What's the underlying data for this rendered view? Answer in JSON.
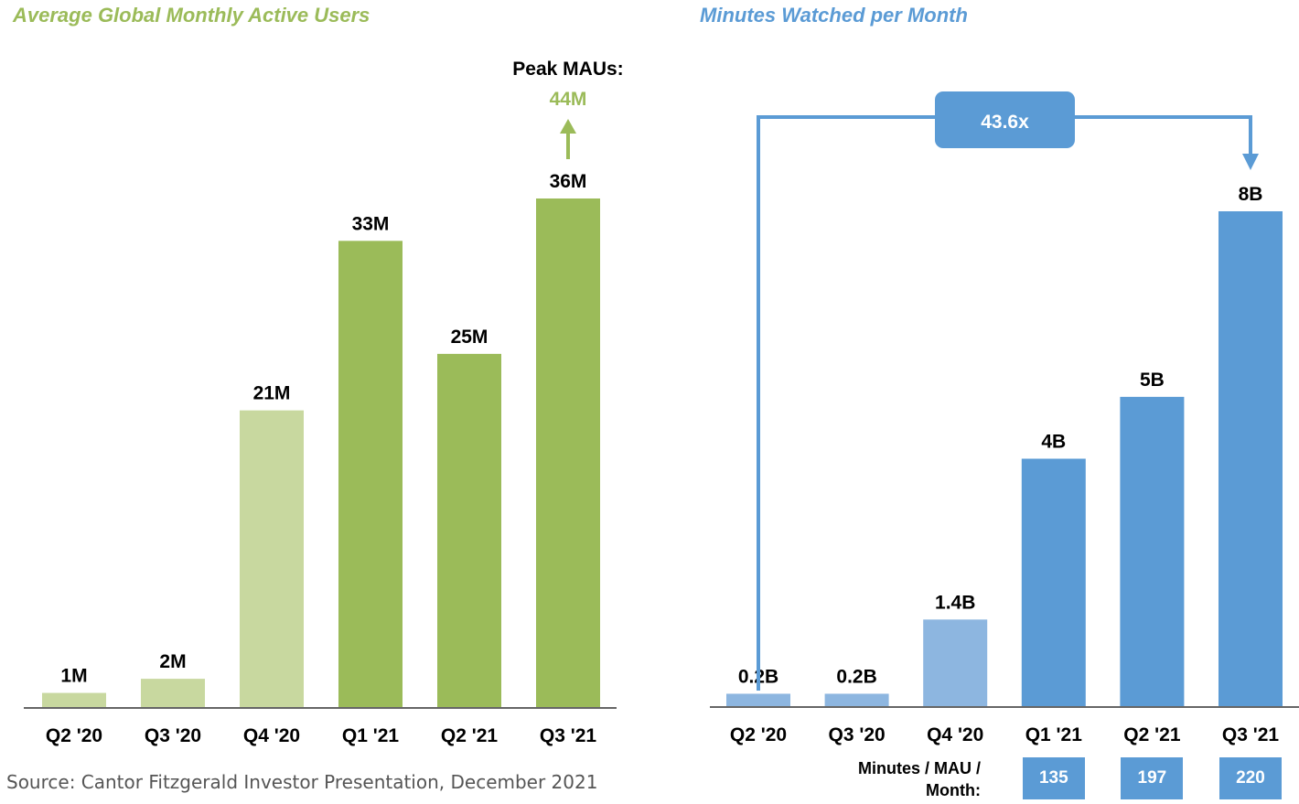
{
  "chart_data": [
    {
      "type": "bar",
      "title": "Average Global Monthly Active Users",
      "categories": [
        "Q2 '20",
        "Q3 '20",
        "Q4 '20",
        "Q1 '21",
        "Q2 '21",
        "Q3 '21"
      ],
      "values": [
        1,
        2,
        21,
        33,
        25,
        36
      ],
      "value_labels": [
        "1M",
        "2M",
        "21M",
        "33M",
        "25M",
        "36M"
      ],
      "unit": "M",
      "ylim": [
        0,
        40
      ],
      "colors": [
        "#c8d89f",
        "#c8d89f",
        "#c8d89f",
        "#9bbb59",
        "#9bbb59",
        "#9bbb59"
      ],
      "annotation": {
        "label": "Peak MAUs:",
        "value": "44M",
        "category": "Q3 '21",
        "color": "#9bbb59"
      },
      "grid": false
    },
    {
      "type": "bar",
      "title": "Minutes Watched per Month",
      "categories": [
        "Q2 '20",
        "Q3 '20",
        "Q4 '20",
        "Q1 '21",
        "Q2 '21",
        "Q3 '21"
      ],
      "values": [
        0.2,
        0.2,
        1.4,
        4,
        5,
        8
      ],
      "value_labels": [
        "0.2B",
        "0.2B",
        "1.4B",
        "4B",
        "5B",
        "8B"
      ],
      "unit": "B",
      "ylim": [
        0,
        10
      ],
      "colors": [
        "#8db6e0",
        "#8db6e0",
        "#8db6e0",
        "#5b9bd5",
        "#5b9bd5",
        "#5b9bd5"
      ],
      "annotation": {
        "label": "43.6x",
        "from": "Q2 '20",
        "to": "Q3 '21"
      },
      "grid": false,
      "minutes_per_mau": {
        "label": "Minutes / MAU / Month:",
        "entries": [
          {
            "category": "Q1 '21",
            "value": 135
          },
          {
            "category": "Q2 '21",
            "value": 197
          },
          {
            "category": "Q3 '21",
            "value": 220
          }
        ]
      }
    }
  ],
  "source": "Source: Cantor Fitzgerald Investor Presentation, December 2021"
}
